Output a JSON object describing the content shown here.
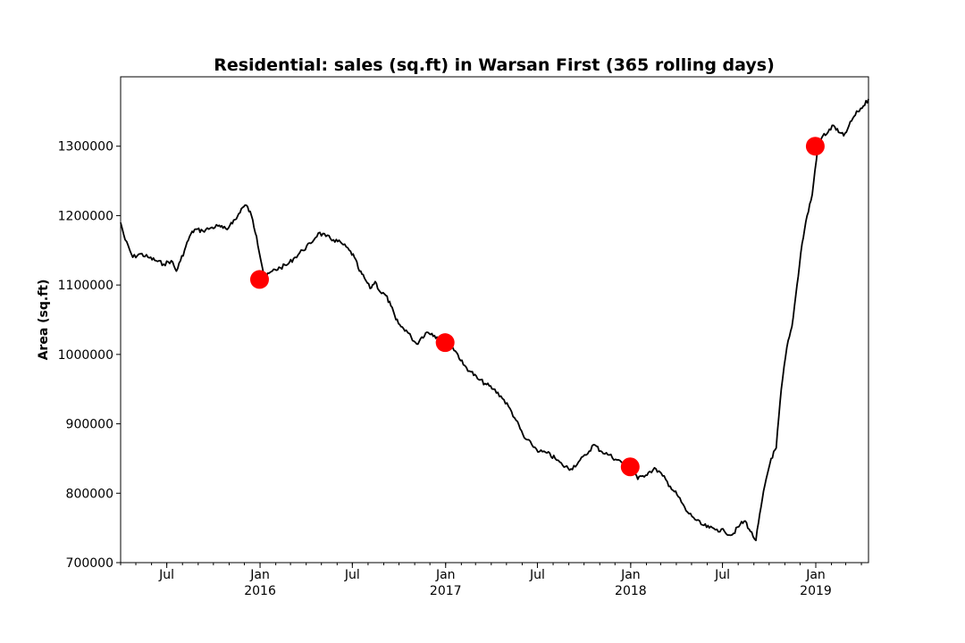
{
  "chart_data": {
    "type": "line",
    "title": "Residential: sales (sq.ft) in Warsan First (365 rolling days)",
    "xlabel": "",
    "ylabel": "Area (sq.ft)",
    "xlim": [
      "2015-04-01",
      "2019-04-15"
    ],
    "ylim": [
      700000,
      1400000
    ],
    "y_ticks": [
      {
        "value": 700000,
        "label": "700000"
      },
      {
        "value": 800000,
        "label": "800000"
      },
      {
        "value": 900000,
        "label": "900000"
      },
      {
        "value": 1000000,
        "label": "1000000"
      },
      {
        "value": 1100000,
        "label": "1100000"
      },
      {
        "value": 1200000,
        "label": "1200000"
      },
      {
        "value": 1300000,
        "label": "1300000"
      }
    ],
    "x_ticks": [
      {
        "date": "2015-07-01",
        "label": "Jul",
        "sublabel": ""
      },
      {
        "date": "2016-01-01",
        "label": "Jan",
        "sublabel": "2016"
      },
      {
        "date": "2016-07-01",
        "label": "Jul",
        "sublabel": ""
      },
      {
        "date": "2017-01-01",
        "label": "Jan",
        "sublabel": "2017"
      },
      {
        "date": "2017-07-01",
        "label": "Jul",
        "sublabel": ""
      },
      {
        "date": "2018-01-01",
        "label": "Jan",
        "sublabel": "2018"
      },
      {
        "date": "2018-07-01",
        "label": "Jul",
        "sublabel": ""
      },
      {
        "date": "2019-01-01",
        "label": "Jan",
        "sublabel": "2019"
      }
    ],
    "grid": false,
    "legend": "none",
    "line_color": "#000000",
    "marker_color": "#ff0000",
    "series": [
      {
        "x": [
          "2015-04-01",
          "2015-04-10",
          "2015-04-25",
          "2015-05-10",
          "2015-05-25",
          "2015-06-10",
          "2015-06-25",
          "2015-07-10",
          "2015-07-20",
          "2015-07-28",
          "2015-08-05",
          "2015-08-15",
          "2015-08-25",
          "2015-09-10",
          "2015-09-25",
          "2015-10-10",
          "2015-10-20",
          "2015-10-28",
          "2015-11-05",
          "2015-11-15",
          "2015-11-25",
          "2015-12-05",
          "2015-12-15",
          "2015-12-25",
          "2016-01-10",
          "2016-01-25",
          "2016-02-10",
          "2016-02-25",
          "2016-03-10",
          "2016-03-25",
          "2016-04-10",
          "2016-04-25",
          "2016-05-10",
          "2016-05-25",
          "2016-06-10",
          "2016-06-25",
          "2016-07-05",
          "2016-07-15",
          "2016-07-25",
          "2016-08-05",
          "2016-08-15",
          "2016-08-25",
          "2016-09-05",
          "2016-09-15",
          "2016-09-25",
          "2016-10-05",
          "2016-10-15",
          "2016-10-25",
          "2016-11-05",
          "2016-11-15",
          "2016-11-25",
          "2016-12-05",
          "2016-12-15",
          "2016-12-25",
          "2017-01-05",
          "2017-01-15",
          "2017-01-25",
          "2017-02-05",
          "2017-02-20",
          "2017-03-05",
          "2017-03-20",
          "2017-04-05",
          "2017-04-20",
          "2017-05-05",
          "2017-05-20",
          "2017-06-05",
          "2017-06-20",
          "2017-07-05",
          "2017-07-20",
          "2017-08-05",
          "2017-08-20",
          "2017-09-05",
          "2017-09-20",
          "2017-10-05",
          "2017-10-20",
          "2017-11-05",
          "2017-11-20",
          "2017-12-05",
          "2017-12-20",
          "2018-01-05",
          "2018-01-15",
          "2018-01-25",
          "2018-02-05",
          "2018-02-20",
          "2018-03-05",
          "2018-03-20",
          "2018-04-05",
          "2018-04-20",
          "2018-05-05",
          "2018-05-20",
          "2018-06-05",
          "2018-06-20",
          "2018-07-05",
          "2018-07-20",
          "2018-08-05",
          "2018-08-15",
          "2018-08-25",
          "2018-09-05",
          "2018-09-15",
          "2018-09-25",
          "2018-10-05",
          "2018-10-15",
          "2018-10-25",
          "2018-11-05",
          "2018-11-15",
          "2018-11-25",
          "2018-12-05",
          "2018-12-15",
          "2018-12-25",
          "2019-01-05",
          "2019-01-15",
          "2019-01-25",
          "2019-02-05",
          "2019-02-15",
          "2019-02-25",
          "2019-03-05",
          "2019-03-15",
          "2019-03-25",
          "2019-04-05",
          "2019-04-15"
        ],
        "y": [
          1190000,
          1165000,
          1140000,
          1145000,
          1140000,
          1135000,
          1130000,
          1135000,
          1120000,
          1135000,
          1150000,
          1170000,
          1180000,
          1178000,
          1182000,
          1185000,
          1182000,
          1180000,
          1190000,
          1195000,
          1210000,
          1215000,
          1200000,
          1170000,
          1110000,
          1120000,
          1125000,
          1130000,
          1140000,
          1150000,
          1160000,
          1175000,
          1170000,
          1165000,
          1160000,
          1150000,
          1140000,
          1120000,
          1110000,
          1095000,
          1105000,
          1090000,
          1085000,
          1070000,
          1050000,
          1040000,
          1035000,
          1025000,
          1015000,
          1025000,
          1032000,
          1030000,
          1025000,
          1020000,
          1018000,
          1010000,
          1000000,
          985000,
          975000,
          965000,
          958000,
          950000,
          940000,
          925000,
          905000,
          880000,
          870000,
          860000,
          858000,
          850000,
          840000,
          835000,
          845000,
          855000,
          870000,
          860000,
          855000,
          848000,
          843000,
          838000,
          820000,
          825000,
          830000,
          835000,
          825000,
          810000,
          795000,
          775000,
          765000,
          755000,
          750000,
          748000,
          745000,
          740000,
          755000,
          760000,
          745000,
          732000,
          780000,
          820000,
          850000,
          865000,
          950000,
          1010000,
          1040000,
          1100000,
          1160000,
          1200000,
          1230000,
          1300000,
          1315000,
          1320000,
          1330000,
          1320000,
          1315000,
          1325000,
          1340000,
          1350000,
          1358000,
          1368000
        ]
      }
    ],
    "markers": [
      {
        "x": "2015-12-31",
        "y": 1108000
      },
      {
        "x": "2016-12-31",
        "y": 1017000
      },
      {
        "x": "2017-12-31",
        "y": 838000
      },
      {
        "x": "2018-12-31",
        "y": 1300000
      }
    ]
  }
}
